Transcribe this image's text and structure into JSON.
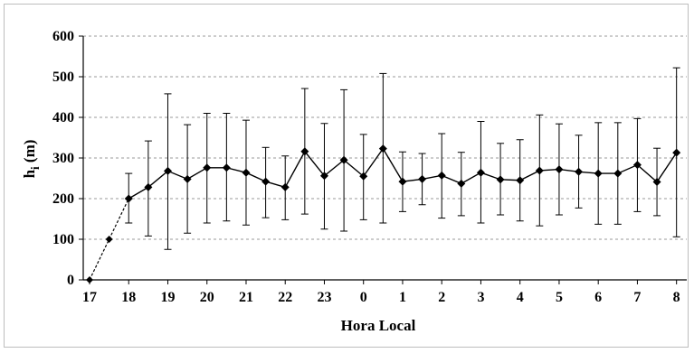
{
  "chart_data": {
    "type": "line",
    "xlabel": "Hora Local",
    "ylabel_main": "h",
    "ylabel_sub": "i",
    "ylabel_unit": " (m)",
    "ylim": [
      0,
      600
    ],
    "yticks": [
      0,
      100,
      200,
      300,
      400,
      500,
      600
    ],
    "grid": "horizontal-dashed",
    "xlim": [
      17,
      32.1
    ],
    "xticks": [
      {
        "x": 17,
        "label": "17"
      },
      {
        "x": 18,
        "label": "18"
      },
      {
        "x": 19,
        "label": "19"
      },
      {
        "x": 20,
        "label": "20"
      },
      {
        "x": 21,
        "label": "21"
      },
      {
        "x": 22,
        "label": "22"
      },
      {
        "x": 23,
        "label": "23"
      },
      {
        "x": 24,
        "label": "0"
      },
      {
        "x": 25,
        "label": "1"
      },
      {
        "x": 26,
        "label": "2"
      },
      {
        "x": 27,
        "label": "3"
      },
      {
        "x": 28,
        "label": "4"
      },
      {
        "x": 29,
        "label": "5"
      },
      {
        "x": 30,
        "label": "6"
      },
      {
        "x": 31,
        "label": "7"
      },
      {
        "x": 32,
        "label": "8"
      }
    ],
    "dashed_segment": [
      {
        "x": 17.0,
        "y": 0
      },
      {
        "x": 17.5,
        "y": 100
      },
      {
        "x": 18.0,
        "y": 200
      }
    ],
    "series": [
      {
        "points": [
          {
            "x": 18.0,
            "y": 200,
            "lo": 140,
            "hi": 262
          },
          {
            "x": 18.5,
            "y": 228,
            "lo": 108,
            "hi": 342
          },
          {
            "x": 19.0,
            "y": 268,
            "lo": 75,
            "hi": 458
          },
          {
            "x": 19.5,
            "y": 248,
            "lo": 115,
            "hi": 382
          },
          {
            "x": 20.0,
            "y": 276,
            "lo": 140,
            "hi": 410
          },
          {
            "x": 20.5,
            "y": 276,
            "lo": 145,
            "hi": 410
          },
          {
            "x": 21.0,
            "y": 264,
            "lo": 135,
            "hi": 393
          },
          {
            "x": 21.5,
            "y": 242,
            "lo": 153,
            "hi": 326
          },
          {
            "x": 22.0,
            "y": 228,
            "lo": 148,
            "hi": 305
          },
          {
            "x": 22.5,
            "y": 316,
            "lo": 162,
            "hi": 471
          },
          {
            "x": 23.0,
            "y": 256,
            "lo": 125,
            "hi": 385
          },
          {
            "x": 23.5,
            "y": 295,
            "lo": 120,
            "hi": 468
          },
          {
            "x": 24.0,
            "y": 255,
            "lo": 148,
            "hi": 358
          },
          {
            "x": 24.5,
            "y": 323,
            "lo": 140,
            "hi": 508
          },
          {
            "x": 25.0,
            "y": 242,
            "lo": 168,
            "hi": 315
          },
          {
            "x": 25.5,
            "y": 248,
            "lo": 185,
            "hi": 311
          },
          {
            "x": 26.0,
            "y": 257,
            "lo": 152,
            "hi": 360
          },
          {
            "x": 26.5,
            "y": 237,
            "lo": 158,
            "hi": 314
          },
          {
            "x": 27.0,
            "y": 264,
            "lo": 140,
            "hi": 390
          },
          {
            "x": 27.5,
            "y": 247,
            "lo": 160,
            "hi": 336
          },
          {
            "x": 28.0,
            "y": 245,
            "lo": 145,
            "hi": 345
          },
          {
            "x": 28.5,
            "y": 269,
            "lo": 133,
            "hi": 406
          },
          {
            "x": 29.0,
            "y": 272,
            "lo": 160,
            "hi": 384
          },
          {
            "x": 29.5,
            "y": 266,
            "lo": 177,
            "hi": 356
          },
          {
            "x": 30.0,
            "y": 262,
            "lo": 137,
            "hi": 387
          },
          {
            "x": 30.5,
            "y": 262,
            "lo": 137,
            "hi": 387
          },
          {
            "x": 31.0,
            "y": 283,
            "lo": 168,
            "hi": 397
          },
          {
            "x": 31.5,
            "y": 241,
            "lo": 158,
            "hi": 324
          },
          {
            "x": 32.0,
            "y": 313,
            "lo": 106,
            "hi": 522
          }
        ]
      }
    ]
  }
}
